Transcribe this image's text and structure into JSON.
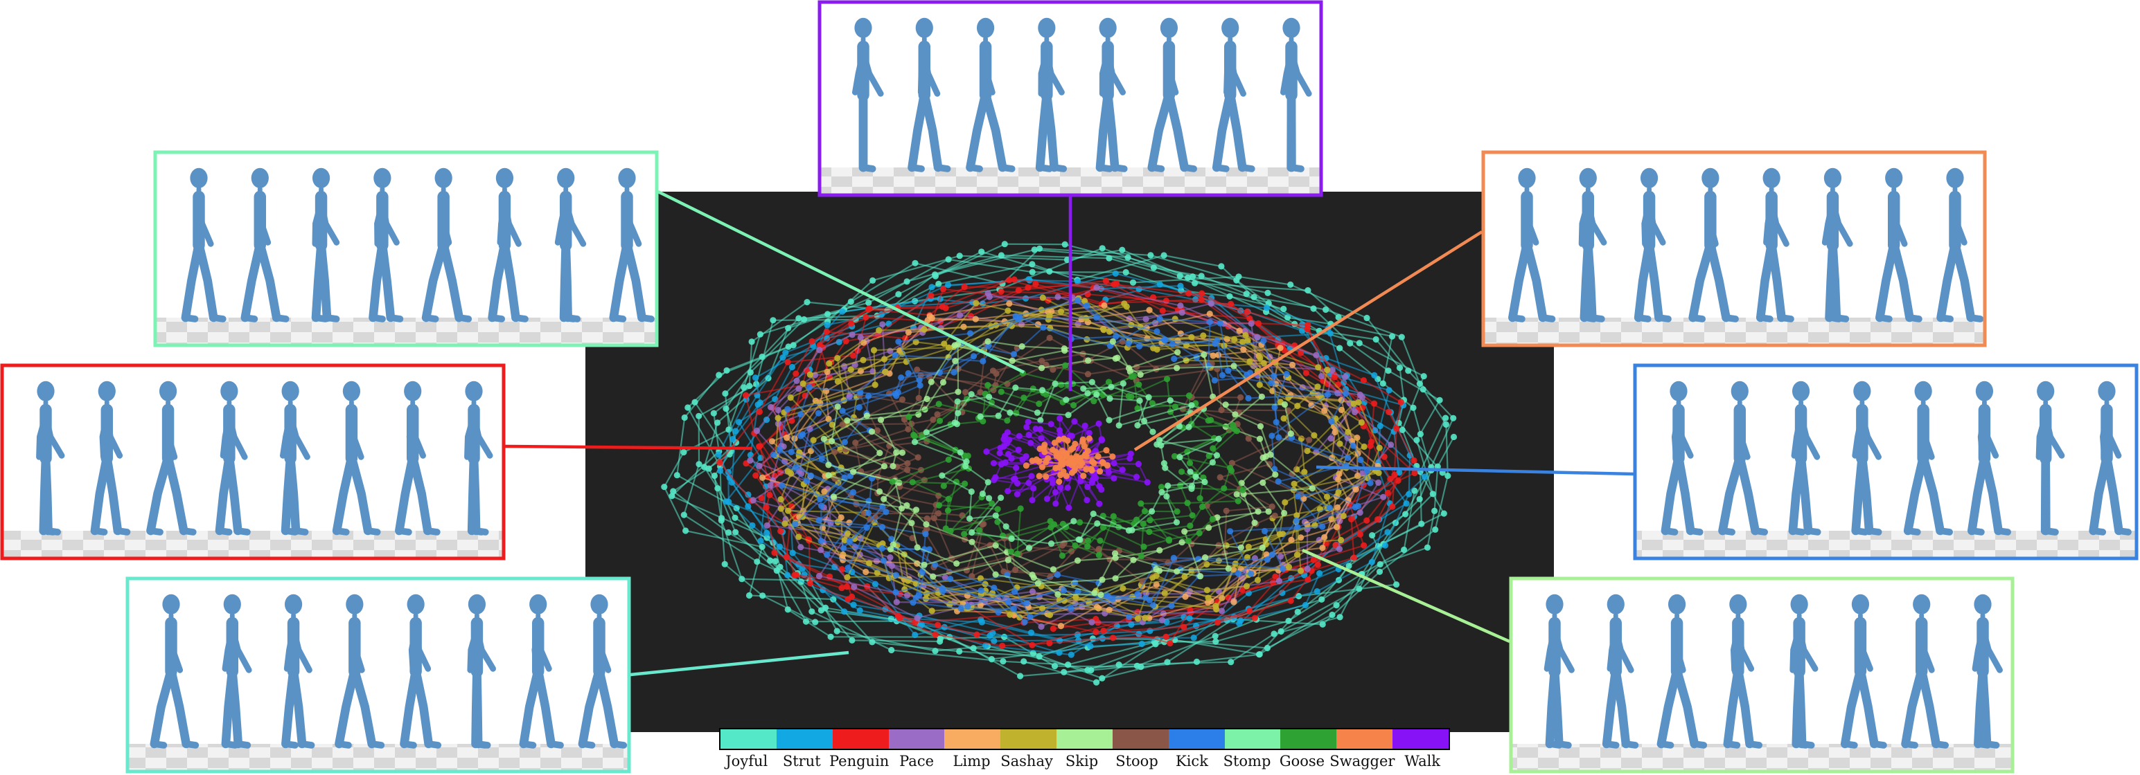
{
  "styles": [
    {
      "name": "Joyful",
      "color": "#55e8c8"
    },
    {
      "name": "Strut",
      "color": "#12a8e4"
    },
    {
      "name": "Penguin",
      "color": "#ee1c1c"
    },
    {
      "name": "Pace",
      "color": "#9a6cc6"
    },
    {
      "name": "Limp",
      "color": "#f7ac62"
    },
    {
      "name": "Sashay",
      "color": "#c0b22c"
    },
    {
      "name": "Skip",
      "color": "#a8f096"
    },
    {
      "name": "Stoop",
      "color": "#8a5648"
    },
    {
      "name": "Kick",
      "color": "#2c7ee8"
    },
    {
      "name": "Stomp",
      "color": "#7cf2a8"
    },
    {
      "name": "Goose",
      "color": "#2ea232"
    },
    {
      "name": "Swagger",
      "color": "#f6844a"
    },
    {
      "name": "Walk",
      "color": "#8812f6"
    }
  ],
  "figure_color": "#5a92c6",
  "scatter_background": "#222222",
  "panels": [
    {
      "style": "Walk",
      "color": "#8a1cf0"
    },
    {
      "style": "Stomp",
      "color": "#7cf2b4"
    },
    {
      "style": "Swagger",
      "color": "#f28a54"
    },
    {
      "style": "Penguin",
      "color": "#ee1c1c"
    },
    {
      "style": "Kick",
      "color": "#3a82e0"
    },
    {
      "style": "Joyful",
      "color": "#68e8cc"
    },
    {
      "style": "Skip",
      "color": "#a8f096"
    }
  ]
}
